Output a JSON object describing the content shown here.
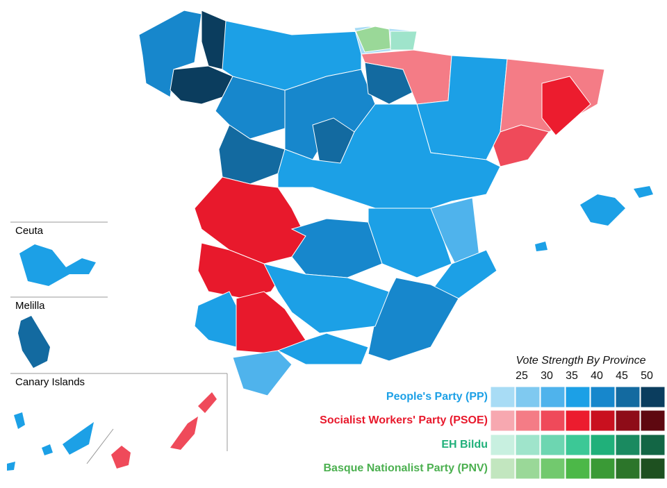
{
  "insets": [
    "Ceuta",
    "Melilla",
    "Canary Islands"
  ],
  "legend": {
    "title": "Vote Strength By Province",
    "scale": [
      25,
      30,
      35,
      40,
      45,
      50
    ],
    "parties": [
      {
        "name": "People's Party (PP)",
        "color": "#1ca0e6",
        "shades": [
          "#a8dcf5",
          "#7fc9f0",
          "#4fb3ec",
          "#1ca0e6",
          "#1787cc",
          "#136aa0",
          "#0b3d5e"
        ]
      },
      {
        "name": "Socialist Workers' Party (PSOE)",
        "color": "#e8192c",
        "shades": [
          "#f7a8b0",
          "#f47c86",
          "#ef4a5a",
          "#ec1c2e",
          "#c9101f",
          "#8e0c18",
          "#5e0810"
        ]
      },
      {
        "name": "EH Bildu",
        "color": "#20b07a",
        "shades": [
          "#c8f0e0",
          "#9fe4cb",
          "#6dd6b1",
          "#3cc896",
          "#20b07a",
          "#1a8a60",
          "#136645"
        ]
      },
      {
        "name": "Basque Nationalist Party (PNV)",
        "color": "#4cb050",
        "shades": [
          "#c2e6bf",
          "#9ad898",
          "#72c96e",
          "#4cb848",
          "#3a9a36",
          "#2c752a",
          "#1e5020"
        ]
      }
    ]
  }
}
